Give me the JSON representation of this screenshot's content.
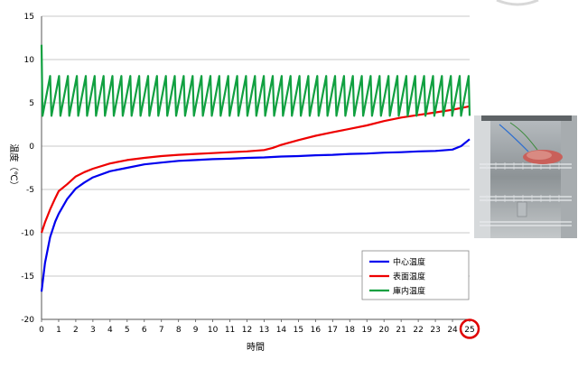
{
  "chart_data": {
    "type": "line",
    "title": "",
    "xlabel": "時間",
    "ylabel": "温度（℃）",
    "xlim": [
      0,
      25
    ],
    "ylim": [
      -20,
      15
    ],
    "x_ticks": [
      "0",
      "1",
      "2",
      "3",
      "4",
      "5",
      "6",
      "7",
      "8",
      "9",
      "10",
      "11",
      "12",
      "13",
      "14",
      "15",
      "16",
      "17",
      "18",
      "19",
      "20",
      "21",
      "22",
      "23",
      "24",
      "25"
    ],
    "y_ticks": [
      "15",
      "10",
      "5",
      "0",
      "-5",
      "-10",
      "-15",
      "-20"
    ],
    "y_tick_values": [
      15,
      10,
      5,
      0,
      -5,
      -10,
      -15,
      -20
    ],
    "grid": true,
    "legend_position": "bottom-right",
    "highlighted_x_tick": "25",
    "series": [
      {
        "name": "中心温度",
        "color": "#0000ee",
        "x": [
          0,
          0.2,
          0.5,
          0.8,
          1,
          1.5,
          2,
          2.5,
          3,
          4,
          5,
          6,
          7,
          8,
          9,
          10,
          11,
          12,
          13,
          14,
          15,
          16,
          17,
          18,
          19,
          20,
          21,
          22,
          23,
          24,
          24.5,
          25
        ],
        "y": [
          -16.8,
          -13.5,
          -10.5,
          -8.7,
          -7.8,
          -6.1,
          -4.9,
          -4.2,
          -3.6,
          -2.9,
          -2.5,
          -2.1,
          -1.9,
          -1.7,
          -1.6,
          -1.5,
          -1.45,
          -1.35,
          -1.3,
          -1.2,
          -1.15,
          -1.05,
          -1.0,
          -0.9,
          -0.85,
          -0.75,
          -0.7,
          -0.6,
          -0.55,
          -0.4,
          0.0,
          0.8
        ]
      },
      {
        "name": "表面温度",
        "color": "#ee0000",
        "x": [
          0,
          0.2,
          0.5,
          0.8,
          1,
          1.5,
          2,
          2.5,
          3,
          4,
          5,
          6,
          7,
          8,
          9,
          10,
          11,
          12,
          13,
          13.5,
          14,
          15,
          16,
          17,
          18,
          19,
          20,
          21,
          22,
          23,
          24,
          25
        ],
        "y": [
          -10.0,
          -8.8,
          -7.3,
          -6.0,
          -5.2,
          -4.4,
          -3.5,
          -3.0,
          -2.6,
          -2.0,
          -1.6,
          -1.35,
          -1.15,
          -1.0,
          -0.9,
          -0.8,
          -0.7,
          -0.6,
          -0.45,
          -0.2,
          0.15,
          0.7,
          1.2,
          1.6,
          2.0,
          2.4,
          2.9,
          3.3,
          3.6,
          3.9,
          4.2,
          4.6
        ]
      },
      {
        "name": "庫内温度",
        "color": "#10a040",
        "pattern": "sawtooth",
        "start_value": 11.7,
        "cycle_length_h": 0.52,
        "min_value": 3.5,
        "max_value": 8.1,
        "x_range": [
          0,
          25
        ]
      }
    ]
  },
  "photo": {
    "description_icon": "freezer-shelf-photo-icon"
  }
}
